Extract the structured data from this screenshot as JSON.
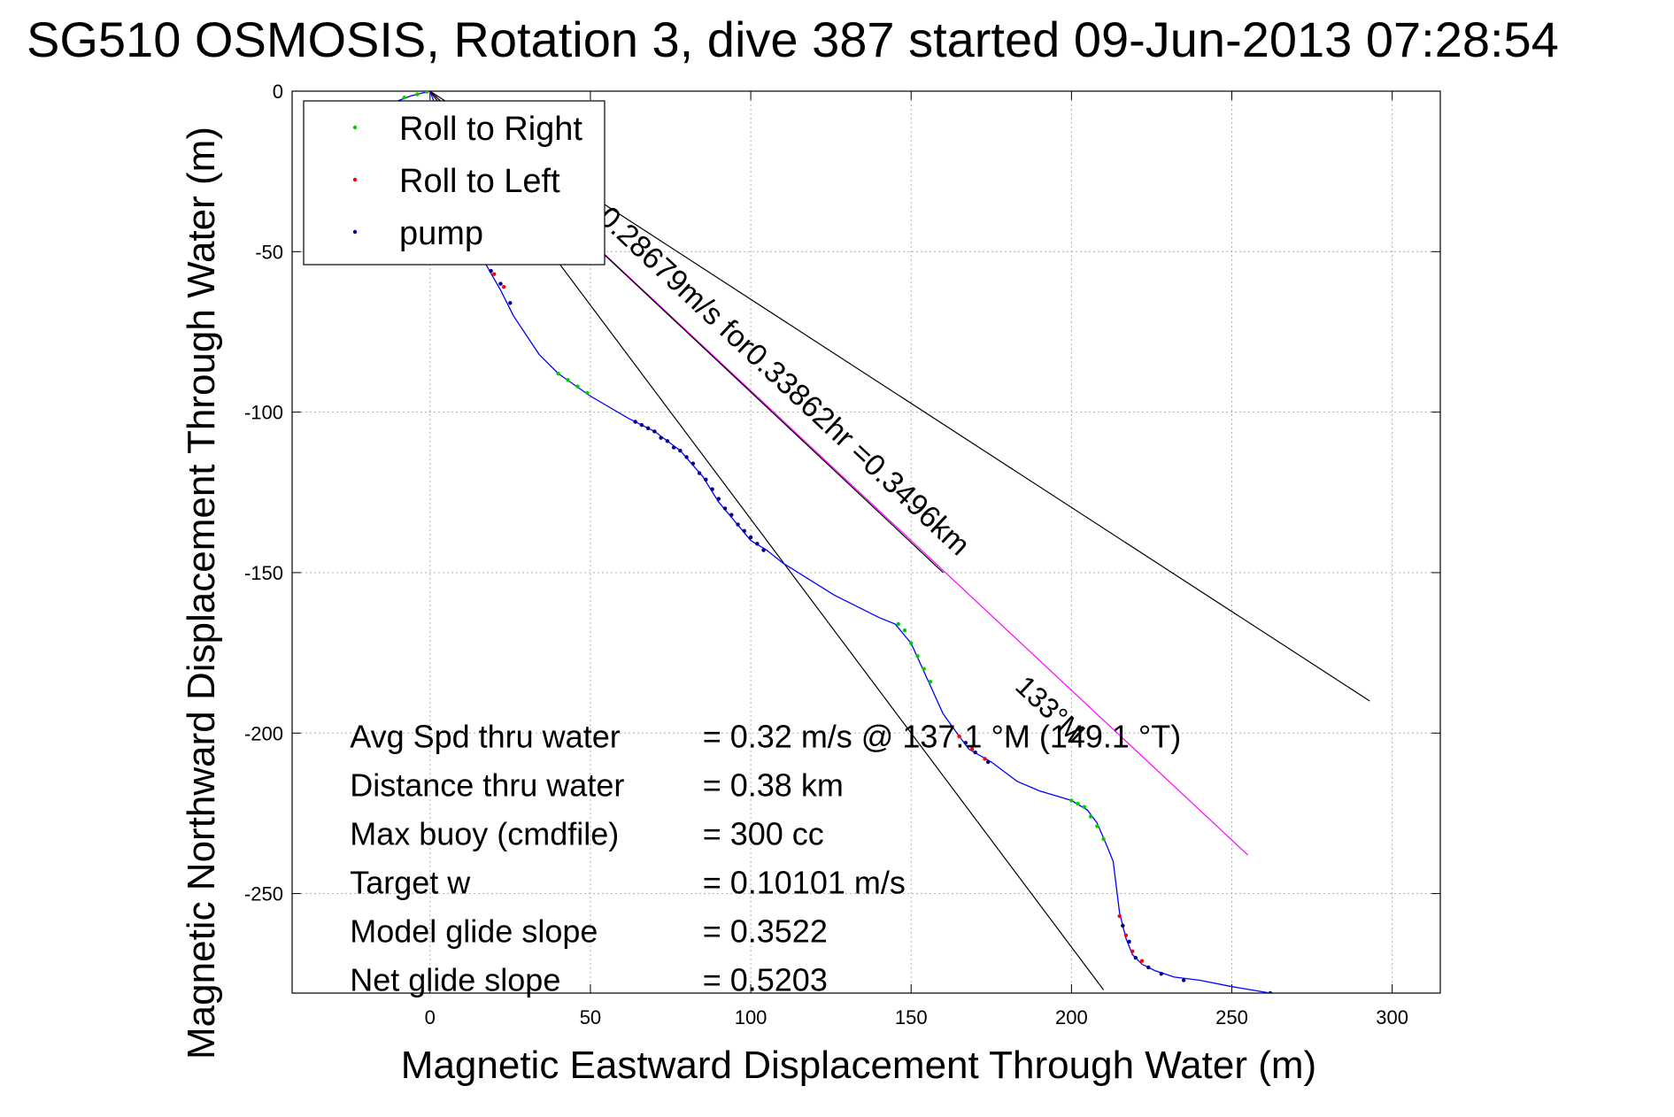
{
  "chart_data": {
    "type": "scatter",
    "title": "SG510 OSMOSIS, Rotation 3, dive 387 started 09-Jun-2013 07:28:54",
    "xlabel": "Magnetic Eastward Displacement Through Water (m)",
    "ylabel": "Magnetic Northward Displacement Through Water (m)",
    "xlim": [
      -43,
      315
    ],
    "ylim": [
      -281,
      0
    ],
    "xticks": [
      0,
      50,
      100,
      150,
      200,
      250,
      300
    ],
    "yticks": [
      0,
      -50,
      -100,
      -150,
      -200,
      -250
    ],
    "grid": true,
    "legend_position": "top-left",
    "legend": [
      {
        "label": "Roll to Right",
        "color": "#00cc00"
      },
      {
        "label": "Roll to Left",
        "color": "#ff0000"
      },
      {
        "label": "pump",
        "color": "#000080"
      }
    ],
    "track_color": "#0000ff",
    "track": [
      [
        -10,
        -3
      ],
      [
        -6,
        -1.5
      ],
      [
        -2,
        -0.5
      ],
      [
        0,
        0
      ],
      [
        3,
        -8
      ],
      [
        6,
        -20
      ],
      [
        10,
        -36
      ],
      [
        14,
        -48
      ],
      [
        18,
        -55
      ],
      [
        22,
        -62
      ],
      [
        26,
        -70
      ],
      [
        30,
        -76
      ],
      [
        34,
        -82
      ],
      [
        40,
        -88
      ],
      [
        50,
        -95
      ],
      [
        62,
        -102
      ],
      [
        70,
        -106
      ],
      [
        78,
        -112
      ],
      [
        85,
        -120
      ],
      [
        90,
        -128
      ],
      [
        95,
        -134
      ],
      [
        100,
        -140
      ],
      [
        105,
        -143
      ],
      [
        110,
        -147
      ],
      [
        118,
        -152
      ],
      [
        126,
        -157
      ],
      [
        134,
        -161
      ],
      [
        140,
        -164
      ],
      [
        145,
        -166
      ],
      [
        150,
        -172
      ],
      [
        155,
        -183
      ],
      [
        160,
        -194
      ],
      [
        165,
        -201
      ],
      [
        168,
        -205
      ],
      [
        175,
        -209
      ],
      [
        183,
        -215
      ],
      [
        190,
        -218
      ],
      [
        200,
        -221
      ],
      [
        205,
        -224
      ],
      [
        208,
        -228
      ],
      [
        211,
        -235
      ],
      [
        213,
        -240
      ],
      [
        214,
        -248
      ],
      [
        215,
        -256
      ],
      [
        217,
        -264
      ],
      [
        219,
        -269
      ],
      [
        222,
        -272
      ],
      [
        226,
        -274
      ],
      [
        232,
        -276
      ],
      [
        240,
        -277
      ],
      [
        250,
        -279
      ],
      [
        262,
        -281
      ]
    ],
    "roll_right": [
      [
        -8,
        -2
      ],
      [
        -4,
        -1
      ],
      [
        -1,
        -0.2
      ],
      [
        40,
        -88
      ],
      [
        43,
        -90
      ],
      [
        46,
        -92
      ],
      [
        49,
        -94
      ],
      [
        146,
        -166
      ],
      [
        148,
        -168
      ],
      [
        150,
        -172
      ],
      [
        152,
        -176
      ],
      [
        154,
        -180
      ],
      [
        156,
        -184
      ],
      [
        200,
        -221
      ],
      [
        202,
        -222
      ],
      [
        204,
        -223
      ],
      [
        206,
        -226
      ],
      [
        208,
        -229
      ],
      [
        210,
        -233
      ]
    ],
    "roll_left": [
      [
        14,
        -49
      ],
      [
        17,
        -53
      ],
      [
        20,
        -57
      ],
      [
        23,
        -61
      ],
      [
        165,
        -201
      ],
      [
        169,
        -205
      ],
      [
        173,
        -208
      ],
      [
        215,
        -257
      ],
      [
        217,
        -263
      ],
      [
        219,
        -268
      ],
      [
        222,
        -271
      ]
    ],
    "pump": [
      [
        16,
        -52
      ],
      [
        19,
        -56
      ],
      [
        22,
        -60
      ],
      [
        25,
        -66
      ],
      [
        64,
        -103
      ],
      [
        66,
        -104
      ],
      [
        68,
        -105
      ],
      [
        70,
        -106
      ],
      [
        72,
        -108
      ],
      [
        74,
        -109
      ],
      [
        76,
        -111
      ],
      [
        78,
        -112
      ],
      [
        80,
        -114
      ],
      [
        82,
        -116
      ],
      [
        84,
        -119
      ],
      [
        86,
        -121
      ],
      [
        88,
        -124
      ],
      [
        90,
        -127
      ],
      [
        92,
        -130
      ],
      [
        94,
        -132
      ],
      [
        96,
        -135
      ],
      [
        98,
        -137
      ],
      [
        100,
        -139
      ],
      [
        102,
        -141
      ],
      [
        104,
        -143
      ],
      [
        167,
        -203
      ],
      [
        170,
        -206
      ],
      [
        174,
        -209
      ],
      [
        216,
        -260
      ],
      [
        218,
        -265
      ],
      [
        220,
        -270
      ],
      [
        224,
        -273
      ],
      [
        228,
        -275
      ],
      [
        235,
        -277
      ],
      [
        262,
        -281
      ]
    ],
    "lines": [
      {
        "name": "bracket-upper",
        "color": "#000000",
        "points": [
          [
            0,
            0
          ],
          [
            293,
            -190
          ]
        ]
      },
      {
        "name": "bracket-lower",
        "color": "#000000",
        "points": [
          [
            0,
            0
          ],
          [
            210,
            -280
          ]
        ]
      },
      {
        "name": "net-track",
        "color": "#ff00ff",
        "points": [
          [
            0,
            0
          ],
          [
            255,
            -238
          ]
        ]
      },
      {
        "name": "net-track-shadow",
        "color": "#000000",
        "points": [
          [
            0,
            0
          ],
          [
            160,
            -150
          ]
        ]
      }
    ],
    "annotations": {
      "net_track_label": "0.28679m/s for0.33862hr =0.3496km",
      "heading_label": "133°M",
      "stats": [
        {
          "label": "Avg Spd thru water",
          "value": "=  0.32 m/s @ 137.1  °M (149.1 °T)"
        },
        {
          "label": "Distance thru water",
          "value": "=  0.38 km"
        },
        {
          "label": "Max buoy (cmdfile)",
          "value": "= 300 cc"
        },
        {
          "label": "Target w",
          "value": "= 0.10101 m/s"
        },
        {
          "label": "Model glide slope",
          "value": "= 0.3522"
        },
        {
          "label": "Net glide slope",
          "value": "= 0.5203"
        }
      ]
    }
  }
}
